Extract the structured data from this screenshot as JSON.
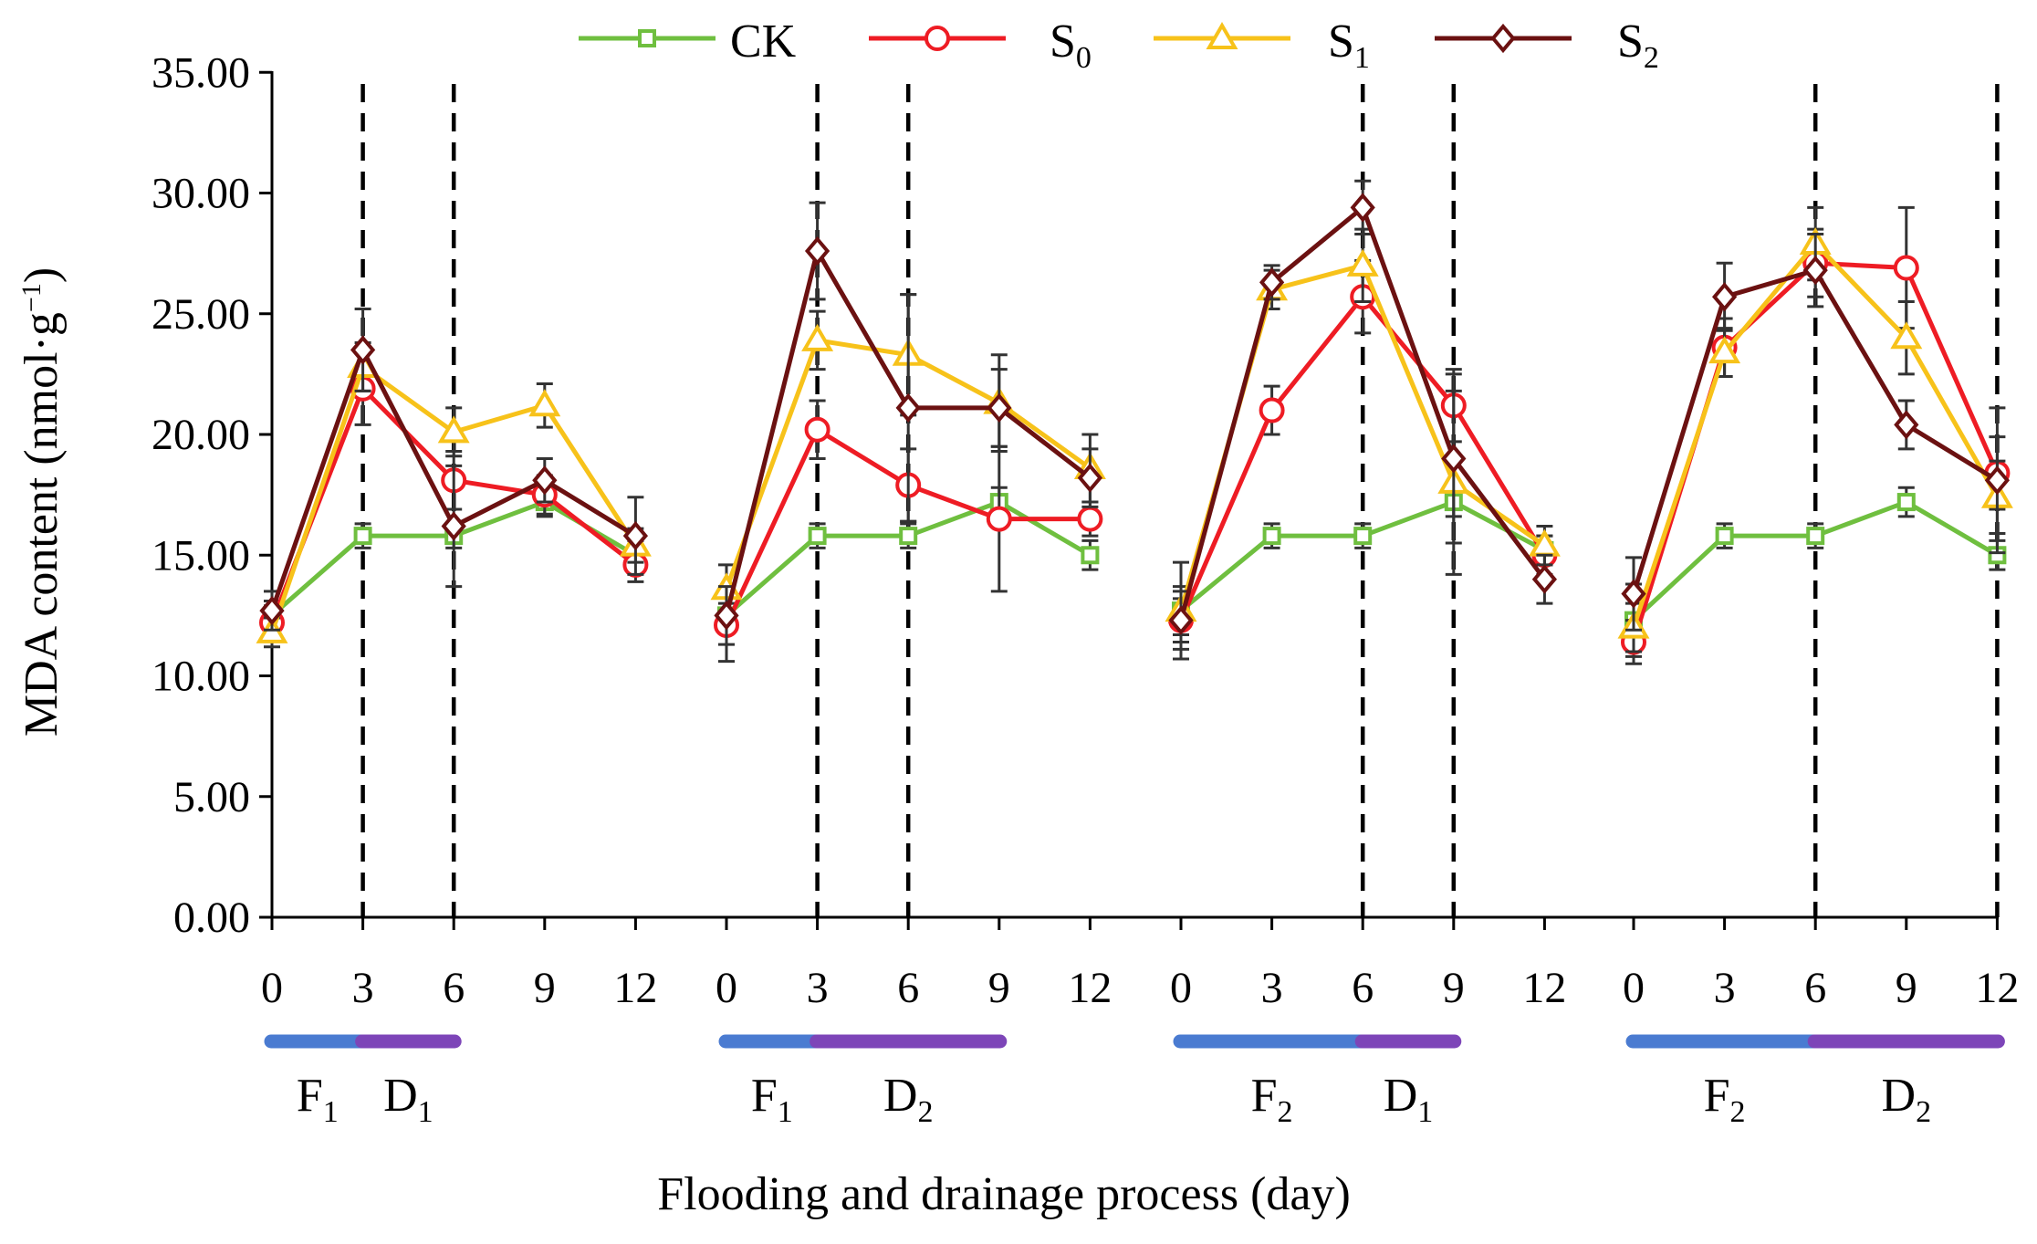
{
  "chart_data": {
    "type": "line",
    "xlabel": "Flooding and drainage process (day)",
    "ylabel": "MDA content (nmol·g",
    "ylabel_sup": "−1",
    "ylabel_close": ")",
    "ylim": [
      0,
      35
    ],
    "yticks": [
      "0.00",
      "5.00",
      "10.00",
      "15.00",
      "20.00",
      "25.00",
      "30.00",
      "35.00"
    ],
    "legend_position": "top",
    "grid": false,
    "panels": [
      {
        "x": [
          0,
          3,
          6,
          9,
          12
        ],
        "xtick_labels": [
          "0",
          "3",
          "6",
          "9",
          "12"
        ],
        "dashed_lines_at": [
          3,
          6
        ],
        "series": [
          {
            "name": "CK",
            "values": [
              12.5,
              15.8,
              15.8,
              17.2,
              15.0
            ],
            "errors": [
              0.6,
              0.5,
              0.5,
              0.6,
              0.6
            ]
          },
          {
            "name": "S0",
            "values": [
              12.2,
              21.9,
              18.1,
              17.5,
              14.6
            ],
            "errors": [
              0.7,
              1.5,
              1.2,
              0.8,
              0.7
            ]
          },
          {
            "name": "S1",
            "values": [
              11.8,
              22.8,
              20.1,
              21.2,
              15.4
            ],
            "errors": [
              0.6,
              1.0,
              1.0,
              0.9,
              0.7
            ]
          },
          {
            "name": "S2",
            "values": [
              12.7,
              23.5,
              16.2,
              18.1,
              15.8
            ],
            "errors": [
              0.8,
              1.7,
              2.5,
              0.9,
              1.6
            ]
          }
        ],
        "phases": [
          {
            "letter": "F",
            "sub": "1",
            "from": 0,
            "to": 3,
            "color": "#4a7bd1"
          },
          {
            "letter": "D",
            "sub": "1",
            "from": 3,
            "to": 6,
            "color": "#7d45b8"
          }
        ]
      },
      {
        "x": [
          0,
          3,
          6,
          9,
          12
        ],
        "xtick_labels": [
          "0",
          "3",
          "6",
          "9",
          "12"
        ],
        "dashed_lines_at": [
          3,
          6
        ],
        "series": [
          {
            "name": "CK",
            "values": [
              12.5,
              15.8,
              15.8,
              17.2,
              15.0
            ],
            "errors": [
              0.5,
              0.5,
              0.5,
              0.6,
              0.6
            ]
          },
          {
            "name": "S0",
            "values": [
              12.1,
              20.2,
              17.9,
              16.5,
              16.5
            ],
            "errors": [
              1.5,
              1.2,
              1.5,
              3.0,
              0.7
            ]
          },
          {
            "name": "S1",
            "values": [
              13.6,
              23.9,
              23.3,
              21.3,
              18.6
            ],
            "errors": [
              1.0,
              1.2,
              2.5,
              2.0,
              1.4
            ]
          },
          {
            "name": "S2",
            "values": [
              12.5,
              27.6,
              21.1,
              21.1,
              18.2
            ],
            "errors": [
              1.2,
              2.0,
              4.7,
              1.6,
              1.2
            ]
          }
        ],
        "phases": [
          {
            "letter": "F",
            "sub": "1",
            "from": 0,
            "to": 3,
            "color": "#4a7bd1"
          },
          {
            "letter": "D",
            "sub": "2",
            "from": 3,
            "to": 9,
            "color": "#7d45b8"
          }
        ]
      },
      {
        "x": [
          0,
          3,
          6,
          9,
          12
        ],
        "xtick_labels": [
          "0",
          "3",
          "6",
          "9",
          "12"
        ],
        "dashed_lines_at": [
          6,
          9
        ],
        "series": [
          {
            "name": "CK",
            "values": [
              12.7,
              15.8,
              15.8,
              17.2,
              15.2
            ],
            "errors": [
              2.0,
              0.5,
              0.5,
              0.6,
              0.6
            ]
          },
          {
            "name": "S0",
            "values": [
              12.3,
              21.0,
              25.7,
              21.2,
              15.0
            ],
            "errors": [
              0.9,
              1.0,
              1.5,
              1.5,
              0.8
            ]
          },
          {
            "name": "S1",
            "values": [
              12.7,
              26.0,
              27.0,
              18.0,
              15.4
            ],
            "errors": [
              1.0,
              0.8,
              1.5,
              3.8,
              0.8
            ]
          },
          {
            "name": "S2",
            "values": [
              12.3,
              26.3,
              29.4,
              19.0,
              14.0
            ],
            "errors": [
              1.2,
              0.7,
              1.1,
              3.5,
              1.0
            ]
          }
        ],
        "phases": [
          {
            "letter": "F",
            "sub": "2",
            "from": 0,
            "to": 6,
            "color": "#4a7bd1"
          },
          {
            "letter": "D",
            "sub": "1",
            "from": 6,
            "to": 9,
            "color": "#7d45b8"
          }
        ]
      },
      {
        "x": [
          0,
          3,
          6,
          9,
          12
        ],
        "xtick_labels": [
          "0",
          "3",
          "6",
          "9",
          "12"
        ],
        "dashed_lines_at": [
          6,
          12
        ],
        "series": [
          {
            "name": "CK",
            "values": [
              12.3,
              15.8,
              15.8,
              17.2,
              15.0
            ],
            "errors": [
              1.5,
              0.5,
              0.5,
              0.6,
              0.6
            ]
          },
          {
            "name": "S0",
            "values": [
              11.4,
              23.6,
              27.1,
              26.9,
              18.4
            ],
            "errors": [
              0.9,
              1.2,
              1.4,
              2.5,
              1.5
            ]
          },
          {
            "name": "S1",
            "values": [
              12.0,
              23.4,
              27.9,
              24.0,
              17.4
            ],
            "errors": [
              1.0,
              1.0,
              1.5,
              1.5,
              1.5
            ]
          },
          {
            "name": "S2",
            "values": [
              13.4,
              25.7,
              26.8,
              20.4,
              18.1
            ],
            "errors": [
              1.5,
              1.4,
              1.5,
              1.0,
              3.0
            ]
          }
        ],
        "phases": [
          {
            "letter": "F",
            "sub": "2",
            "from": 0,
            "to": 6,
            "color": "#4a7bd1"
          },
          {
            "letter": "D",
            "sub": "2",
            "from": 6,
            "to": 12,
            "color": "#7d45b8"
          }
        ]
      }
    ],
    "series_style": [
      {
        "name": "CK",
        "label_main": "CK",
        "label_sub": "",
        "color": "#6fbf3f",
        "marker": "square"
      },
      {
        "name": "S0",
        "label_main": "S",
        "label_sub": "0",
        "color": "#ee1c24",
        "marker": "circle"
      },
      {
        "name": "S1",
        "label_main": "S",
        "label_sub": "1",
        "color": "#f7c21a",
        "marker": "triangle"
      },
      {
        "name": "S2",
        "label_main": "S",
        "label_sub": "2",
        "color": "#6b1111",
        "marker": "diamond"
      }
    ]
  }
}
